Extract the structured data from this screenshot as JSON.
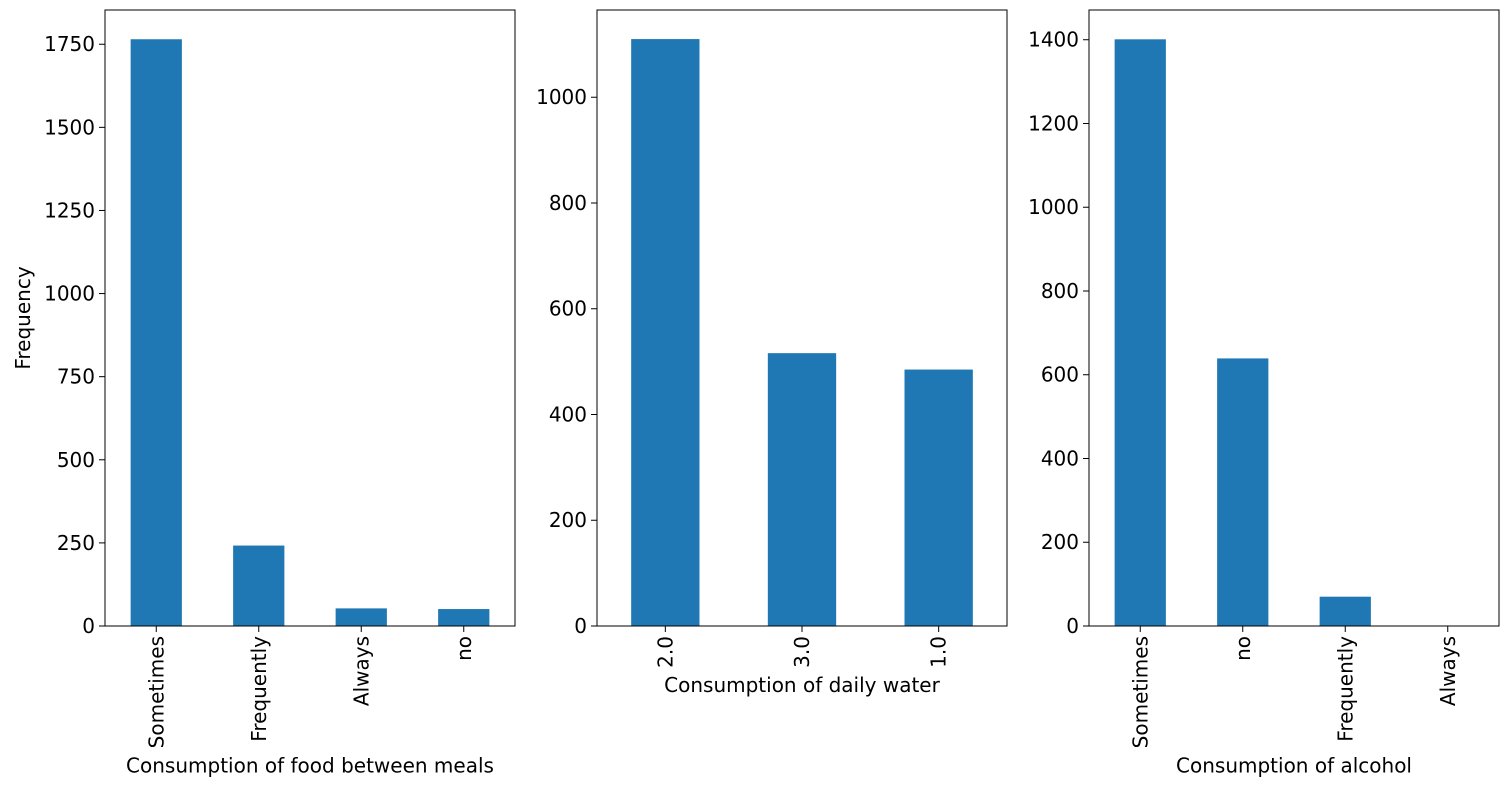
{
  "colors": {
    "bar": "#1f77b4",
    "axis": "#000000",
    "background": "#ffffff"
  },
  "chart_data": [
    {
      "type": "bar",
      "categories": [
        "Sometimes",
        "Frequently",
        "Always",
        "no"
      ],
      "values": [
        1765,
        242,
        53,
        51
      ],
      "xlabel": "Consumption of food between meals",
      "ylabel": "Frequency",
      "ylim": [
        0,
        1853
      ],
      "yticks": [
        0,
        250,
        500,
        750,
        1000,
        1250,
        1500,
        1750
      ],
      "x_tick_rotation": "vertical",
      "grid": false
    },
    {
      "type": "bar",
      "categories": [
        "2.0",
        "3.0",
        "1.0"
      ],
      "values": [
        1110,
        516,
        485
      ],
      "xlabel": "Consumption of daily water",
      "ylabel": "",
      "ylim": [
        0,
        1165
      ],
      "yticks": [
        0,
        200,
        400,
        600,
        800,
        1000
      ],
      "x_tick_rotation": "vertical",
      "grid": false
    },
    {
      "type": "bar",
      "categories": [
        "Sometimes",
        "no",
        "Frequently",
        "Always"
      ],
      "values": [
        1401,
        639,
        70,
        1
      ],
      "xlabel": "Consumption of alcohol",
      "ylabel": "",
      "ylim": [
        0,
        1471
      ],
      "yticks": [
        0,
        200,
        400,
        600,
        800,
        1000,
        1200,
        1400
      ],
      "x_tick_rotation": "vertical",
      "grid": false
    }
  ]
}
